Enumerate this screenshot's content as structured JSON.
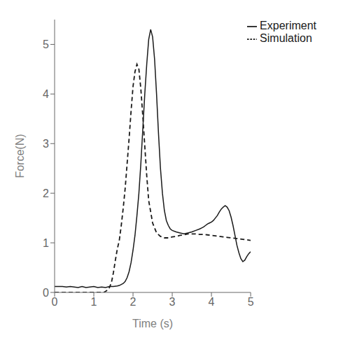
{
  "chart_data": {
    "type": "line",
    "xlabel": "Time (s)",
    "ylabel": "Force(N)",
    "xlim": [
      0,
      5
    ],
    "ylim": [
      0,
      5.5
    ],
    "xticks": [
      0,
      1,
      2,
      3,
      4,
      5
    ],
    "yticks": [
      0,
      1,
      2,
      3,
      4,
      5
    ],
    "grid": false,
    "legend": "upper right",
    "series": [
      {
        "name": "Experiment",
        "color": "#1a1a1a",
        "line_style": "solid",
        "x": [
          0.0,
          0.1,
          0.2,
          0.3,
          0.4,
          0.5,
          0.6,
          0.7,
          0.8,
          0.9,
          1.0,
          1.1,
          1.2,
          1.3,
          1.4,
          1.5,
          1.6,
          1.65,
          1.7,
          1.75,
          1.8,
          1.85,
          1.9,
          1.95,
          2.0,
          2.05,
          2.1,
          2.15,
          2.2,
          2.25,
          2.3,
          2.35,
          2.4,
          2.45,
          2.5,
          2.55,
          2.6,
          2.65,
          2.7,
          2.75,
          2.8,
          2.85,
          2.9,
          2.95,
          3.0,
          3.1,
          3.2,
          3.3,
          3.4,
          3.5,
          3.6,
          3.7,
          3.75,
          3.8,
          3.85,
          3.9,
          3.95,
          4.0,
          4.05,
          4.1,
          4.15,
          4.2,
          4.25,
          4.3,
          4.35,
          4.4,
          4.45,
          4.5,
          4.55,
          4.6,
          4.65,
          4.7,
          4.75,
          4.8,
          4.85,
          4.9,
          4.95,
          5.0
        ],
        "values": [
          0.12,
          0.12,
          0.12,
          0.11,
          0.12,
          0.11,
          0.1,
          0.12,
          0.1,
          0.11,
          0.12,
          0.1,
          0.11,
          0.1,
          0.12,
          0.12,
          0.13,
          0.14,
          0.16,
          0.18,
          0.22,
          0.3,
          0.42,
          0.6,
          0.85,
          1.15,
          1.55,
          2.0,
          2.6,
          3.3,
          4.0,
          4.6,
          5.1,
          5.3,
          5.15,
          4.7,
          4.0,
          3.2,
          2.5,
          2.0,
          1.65,
          1.45,
          1.35,
          1.28,
          1.25,
          1.22,
          1.2,
          1.18,
          1.2,
          1.22,
          1.25,
          1.28,
          1.3,
          1.32,
          1.35,
          1.38,
          1.4,
          1.42,
          1.45,
          1.5,
          1.55,
          1.62,
          1.68,
          1.72,
          1.75,
          1.72,
          1.65,
          1.52,
          1.35,
          1.15,
          0.95,
          0.8,
          0.68,
          0.62,
          0.65,
          0.72,
          0.78,
          0.82
        ]
      },
      {
        "name": "Simulation",
        "color": "#1a1a1a",
        "line_style": "dashed",
        "x": [
          0.0,
          0.1,
          0.2,
          0.3,
          0.4,
          0.5,
          0.6,
          0.7,
          0.8,
          0.9,
          1.0,
          1.1,
          1.2,
          1.25,
          1.3,
          1.35,
          1.4,
          1.45,
          1.5,
          1.55,
          1.6,
          1.65,
          1.7,
          1.75,
          1.8,
          1.85,
          1.9,
          1.95,
          2.0,
          2.05,
          2.1,
          2.15,
          2.2,
          2.25,
          2.3,
          2.35,
          2.4,
          2.5,
          2.6,
          2.7,
          2.8,
          2.9,
          3.0,
          3.1,
          3.2,
          3.3,
          3.4,
          3.5,
          3.6,
          3.7,
          3.8,
          3.9,
          4.0,
          4.1,
          4.2,
          4.3,
          4.4,
          4.5,
          4.6,
          4.7,
          4.8,
          4.9,
          5.0
        ],
        "values": [
          0.0,
          0.0,
          0.0,
          0.0,
          0.0,
          0.0,
          0.0,
          0.0,
          0.0,
          0.0,
          0.0,
          0.0,
          0.0,
          0.0,
          0.02,
          0.05,
          0.1,
          0.2,
          0.4,
          0.65,
          0.88,
          1.05,
          1.35,
          1.7,
          2.1,
          2.6,
          3.1,
          3.65,
          4.15,
          4.45,
          4.6,
          4.5,
          4.1,
          3.55,
          2.95,
          2.35,
          1.85,
          1.4,
          1.2,
          1.13,
          1.1,
          1.1,
          1.12,
          1.13,
          1.15,
          1.16,
          1.18,
          1.18,
          1.18,
          1.17,
          1.17,
          1.16,
          1.15,
          1.14,
          1.13,
          1.12,
          1.11,
          1.1,
          1.09,
          1.08,
          1.07,
          1.06,
          1.05
        ]
      }
    ]
  }
}
